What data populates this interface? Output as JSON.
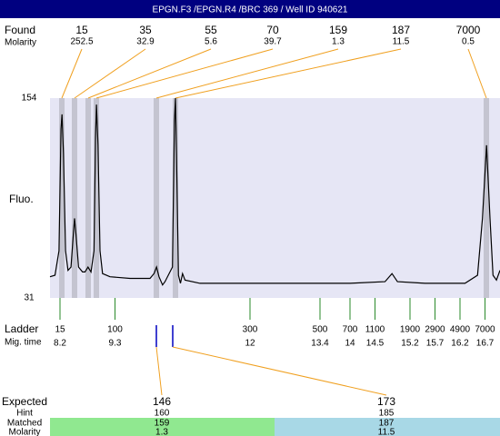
{
  "header": {
    "title": "EPGN.F3 /EPGN.R4 /BRC 369 / Well ID 940621"
  },
  "found": {
    "label": "Found",
    "molarity_label": "Molarity",
    "peaks": [
      {
        "size": 15,
        "molarity": 252.5
      },
      {
        "size": 35,
        "molarity": 32.9
      },
      {
        "size": 55,
        "molarity": 5.6
      },
      {
        "size": 70,
        "molarity": 39.7
      },
      {
        "size": 159,
        "molarity": 1.3
      },
      {
        "size": 187,
        "molarity": 11.5
      },
      {
        "size": 7000,
        "molarity": 0.5
      }
    ]
  },
  "chart_data": {
    "type": "line",
    "ylabel": "Fluo.",
    "ylim": [
      31,
      154
    ],
    "yticks": [
      31,
      154
    ],
    "xlim": [
      8,
      17
    ],
    "color": "#000000",
    "x": [
      8.0,
      8.1,
      8.18,
      8.22,
      8.24,
      8.27,
      8.31,
      8.36,
      8.42,
      8.47,
      8.49,
      8.52,
      8.57,
      8.65,
      8.7,
      8.76,
      8.82,
      8.88,
      8.91,
      8.93,
      8.96,
      9.0,
      9.05,
      9.2,
      9.6,
      10.0,
      10.08,
      10.13,
      10.18,
      10.25,
      10.3,
      10.45,
      10.49,
      10.51,
      10.53,
      10.57,
      10.61,
      10.65,
      10.7,
      11,
      12,
      13,
      14,
      14.7,
      14.84,
      14.95,
      15.5,
      16.3,
      16.55,
      16.65,
      16.73,
      16.8,
      16.86,
      16.93,
      17
    ],
    "values": [
      44,
      45,
      60,
      135,
      144,
      120,
      60,
      48,
      50,
      72,
      80,
      70,
      50,
      47,
      47,
      50,
      47,
      60,
      130,
      150,
      125,
      60,
      46,
      44,
      43,
      43,
      46,
      50,
      44,
      39,
      41,
      50,
      140,
      154,
      120,
      45,
      40,
      46,
      42,
      40,
      40,
      40,
      40,
      41,
      46,
      41,
      40,
      40,
      45,
      80,
      125,
      80,
      45,
      42,
      48
    ]
  },
  "ladder": {
    "label": "Ladder",
    "time_label": "Mig. time",
    "sizes": [
      15,
      100,
      300,
      500,
      700,
      1100,
      1900,
      2900,
      4900,
      7000
    ],
    "times": [
      8.2,
      9.3,
      12,
      13.4,
      14,
      14.5,
      15.2,
      15.7,
      16.2,
      16.7
    ]
  },
  "expected": {
    "labels": [
      "Expected",
      "Hint",
      "Matched",
      "Molarity"
    ],
    "columns": [
      {
        "expected": 146,
        "hint": 160,
        "matched": 159,
        "molarity": 1.3
      },
      {
        "expected": 173,
        "hint": 185,
        "matched": 187,
        "molarity": 11.5
      }
    ]
  }
}
